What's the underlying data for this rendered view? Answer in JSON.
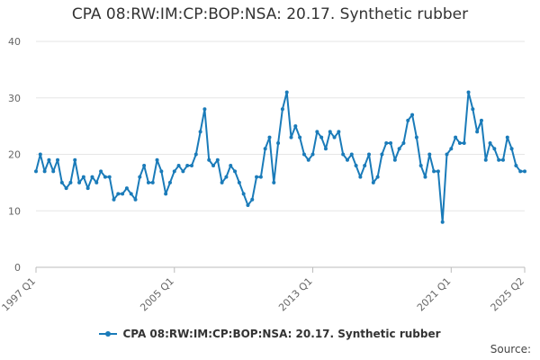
{
  "title": "CPA 08:RW:IM:CP:BOP:NSA: 20.17. Synthetic rubber",
  "source_label": "Source:",
  "chart_data": {
    "type": "line",
    "title": "CPA 08:RW:IM:CP:BOP:NSA: 20.17. Synthetic rubber",
    "xlabel": "",
    "ylabel": "",
    "ylim": [
      0,
      40
    ],
    "yticks": [
      "0",
      "10",
      "20",
      "30",
      "40"
    ],
    "xticks": [
      "1997 Q1",
      "2005 Q1",
      "2013 Q1",
      "2021 Q1",
      "2025 Q2"
    ],
    "grid": true,
    "legend_position": "bottom",
    "series_color": "#1a7bb9",
    "series": [
      {
        "name": "CPA 08:RW:IM:CP:BOP:NSA: 20.17. Synthetic rubber",
        "x": [
          "1997 Q1",
          "1997 Q2",
          "1997 Q3",
          "1997 Q4",
          "1998 Q1",
          "1998 Q2",
          "1998 Q3",
          "1998 Q4",
          "1999 Q1",
          "1999 Q2",
          "1999 Q3",
          "1999 Q4",
          "2000 Q1",
          "2000 Q2",
          "2000 Q3",
          "2000 Q4",
          "2001 Q1",
          "2001 Q2",
          "2001 Q3",
          "2001 Q4",
          "2002 Q1",
          "2002 Q2",
          "2002 Q3",
          "2002 Q4",
          "2003 Q1",
          "2003 Q2",
          "2003 Q3",
          "2003 Q4",
          "2004 Q1",
          "2004 Q2",
          "2004 Q3",
          "2004 Q4",
          "2005 Q1",
          "2005 Q2",
          "2005 Q3",
          "2005 Q4",
          "2006 Q1",
          "2006 Q2",
          "2006 Q3",
          "2006 Q4",
          "2007 Q1",
          "2007 Q2",
          "2007 Q3",
          "2007 Q4",
          "2008 Q1",
          "2008 Q2",
          "2008 Q3",
          "2008 Q4",
          "2009 Q1",
          "2009 Q2",
          "2009 Q3",
          "2009 Q4",
          "2010 Q1",
          "2010 Q2",
          "2010 Q3",
          "2010 Q4",
          "2011 Q1",
          "2011 Q2",
          "2011 Q3",
          "2011 Q4",
          "2012 Q1",
          "2012 Q2",
          "2012 Q3",
          "2012 Q4",
          "2013 Q1",
          "2013 Q2",
          "2013 Q3",
          "2013 Q4",
          "2014 Q1",
          "2014 Q2",
          "2014 Q3",
          "2014 Q4",
          "2015 Q1",
          "2015 Q2",
          "2015 Q3",
          "2015 Q4",
          "2016 Q1",
          "2016 Q2",
          "2016 Q3",
          "2016 Q4",
          "2017 Q1",
          "2017 Q2",
          "2017 Q3",
          "2017 Q4",
          "2018 Q1",
          "2018 Q2",
          "2018 Q3",
          "2018 Q4",
          "2019 Q1",
          "2019 Q2",
          "2019 Q3",
          "2019 Q4",
          "2020 Q1",
          "2020 Q2",
          "2020 Q3",
          "2020 Q4",
          "2021 Q1",
          "2021 Q2",
          "2021 Q3",
          "2021 Q4",
          "2022 Q1",
          "2022 Q2",
          "2022 Q3",
          "2022 Q4",
          "2023 Q1",
          "2023 Q2",
          "2023 Q3",
          "2023 Q4",
          "2024 Q1",
          "2024 Q2",
          "2024 Q3",
          "2024 Q4",
          "2025 Q1",
          "2025 Q2"
        ],
        "values": [
          17,
          20,
          17,
          19,
          17,
          19,
          15,
          14,
          15,
          19,
          15,
          16,
          14,
          16,
          15,
          17,
          16,
          16,
          12,
          13,
          13,
          14,
          13,
          12,
          16,
          18,
          15,
          15,
          19,
          17,
          13,
          15,
          17,
          18,
          17,
          18,
          18,
          20,
          24,
          28,
          19,
          18,
          19,
          15,
          16,
          18,
          17,
          15,
          13,
          11,
          12,
          16,
          16,
          21,
          23,
          15,
          22,
          28,
          31,
          23,
          25,
          23,
          20,
          19,
          20,
          24,
          23,
          21,
          24,
          23,
          24,
          20,
          19,
          20,
          18,
          16,
          18,
          20,
          15,
          16,
          20,
          22,
          22,
          19,
          21,
          22,
          26,
          27,
          23,
          18,
          16,
          20,
          17,
          17,
          8,
          20,
          21,
          23,
          22,
          22,
          31,
          28,
          24,
          26,
          19,
          22,
          21,
          19,
          19,
          23,
          21,
          18,
          17,
          17
        ]
      }
    ]
  }
}
